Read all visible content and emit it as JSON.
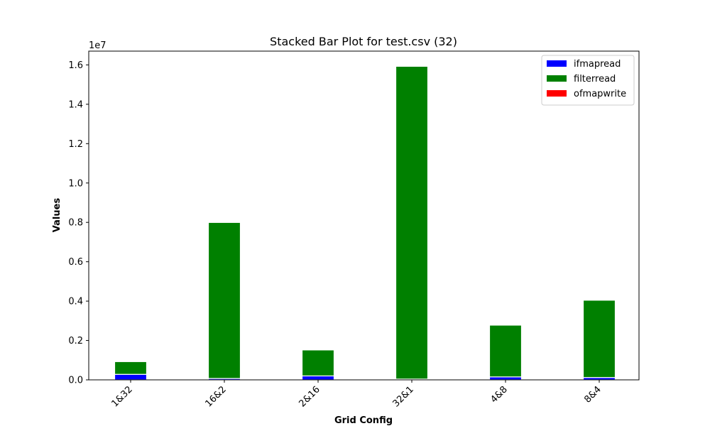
{
  "chart_data": {
    "type": "bar",
    "stacked": true,
    "title": "Stacked Bar Plot for test.csv (32)",
    "xlabel": "Grid Config",
    "ylabel": "Values",
    "y_scale_note": "1e7",
    "categories": [
      "1&32",
      "16&2",
      "2&16",
      "32&1",
      "4&8",
      "8&4"
    ],
    "series": [
      {
        "name": "ifmapread",
        "color": "#0000ff",
        "values": [
          280000,
          70000,
          200000,
          40000,
          150000,
          120000
        ]
      },
      {
        "name": "filterread",
        "color": "#008000",
        "values": [
          650000,
          7930000,
          1320000,
          15890000,
          2630000,
          3930000
        ]
      },
      {
        "name": "ofmapwrite",
        "color": "#ff0000",
        "values": [
          2000,
          2000,
          2000,
          2000,
          2000,
          2000
        ]
      }
    ],
    "ylim": [
      0,
      16700000
    ],
    "yticks": [
      0,
      2000000,
      4000000,
      6000000,
      8000000,
      10000000,
      12000000,
      14000000,
      16000000
    ],
    "ytick_labels": [
      "0.0",
      "0.2",
      "0.4",
      "0.6",
      "0.8",
      "1.0",
      "1.2",
      "1.4",
      "1.6"
    ],
    "grid": false,
    "legend_position": "top-right"
  }
}
